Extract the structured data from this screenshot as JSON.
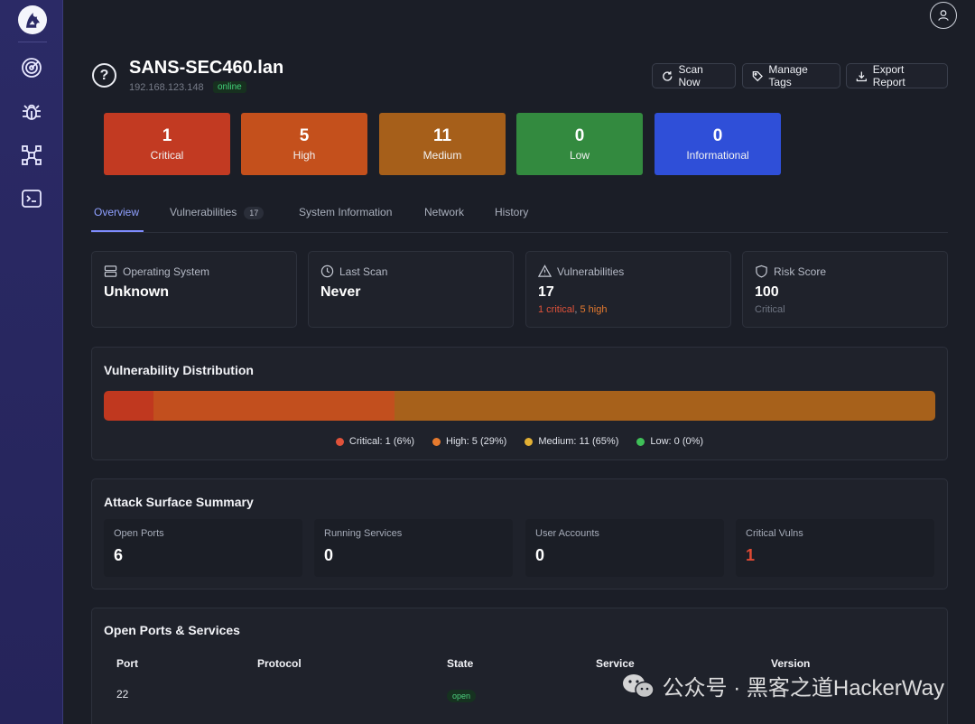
{
  "sidebar": {
    "items": [
      {
        "name": "logo",
        "icon": "wolf-logo-icon"
      },
      {
        "name": "targets",
        "icon": "radar-icon"
      },
      {
        "name": "vulnerabilities",
        "icon": "bug-icon"
      },
      {
        "name": "network",
        "icon": "network-icon"
      },
      {
        "name": "terminal",
        "icon": "terminal-icon"
      }
    ]
  },
  "header": {
    "host_name": "SANS-SEC460.lan",
    "host_ip": "192.168.123.148",
    "status": "online",
    "buttons": {
      "scan": "Scan Now",
      "tags": "Manage Tags",
      "export": "Export Report"
    }
  },
  "severity": [
    {
      "count": "1",
      "label": "Critical",
      "color": "#c23a22"
    },
    {
      "count": "5",
      "label": "High",
      "color": "#c4501c"
    },
    {
      "count": "11",
      "label": "Medium",
      "color": "#a65f1a"
    },
    {
      "count": "0",
      "label": "Low",
      "color": "#338a3f"
    },
    {
      "count": "0",
      "label": "Informational",
      "color": "#2f4fd8"
    }
  ],
  "tabs": [
    {
      "label": "Overview",
      "active": true
    },
    {
      "label": "Vulnerabilities",
      "badge": "17"
    },
    {
      "label": "System Information"
    },
    {
      "label": "Network"
    },
    {
      "label": "History"
    }
  ],
  "stats": [
    {
      "label": "Operating System",
      "value": "Unknown",
      "icon": "server-icon"
    },
    {
      "label": "Last Scan",
      "value": "Never",
      "icon": "clock-icon"
    },
    {
      "label": "Vulnerabilities",
      "value": "17",
      "sub_critical": "1 critical",
      "sub_sep": ", ",
      "sub_high": "5 high",
      "icon": "warning-icon"
    },
    {
      "label": "Risk Score",
      "value": "100",
      "sub": "Critical",
      "icon": "shield-icon"
    }
  ],
  "distribution": {
    "title": "Vulnerability Distribution",
    "segments": [
      {
        "label": "Critical: 1 (6%)",
        "fraction": 0.06,
        "color": "#c0381f",
        "dot": "#e0523a"
      },
      {
        "label": "High: 5 (29%)",
        "fraction": 0.29,
        "color": "#c24f1e",
        "dot": "#e67a2e"
      },
      {
        "label": "Medium: 11 (65%)",
        "fraction": 0.65,
        "color": "#a7611b",
        "dot": "#e2b034"
      },
      {
        "label": "Low: 0 (0%)",
        "fraction": 0.0,
        "color": "#2e8a3d",
        "dot": "#3fbf58"
      }
    ]
  },
  "attack_surface": {
    "title": "Attack Surface Summary",
    "cells": [
      {
        "label": "Open Ports",
        "value": "6"
      },
      {
        "label": "Running Services",
        "value": "0"
      },
      {
        "label": "User Accounts",
        "value": "0"
      },
      {
        "label": "Critical Vulns",
        "value": "1"
      }
    ]
  },
  "ports": {
    "title": "Open Ports & Services",
    "columns": [
      "Port",
      "Protocol",
      "State",
      "Service",
      "Version"
    ],
    "rows": [
      {
        "port": "22",
        "state": "open"
      }
    ]
  },
  "watermark": "公众号 · 黑客之道HackerWay"
}
